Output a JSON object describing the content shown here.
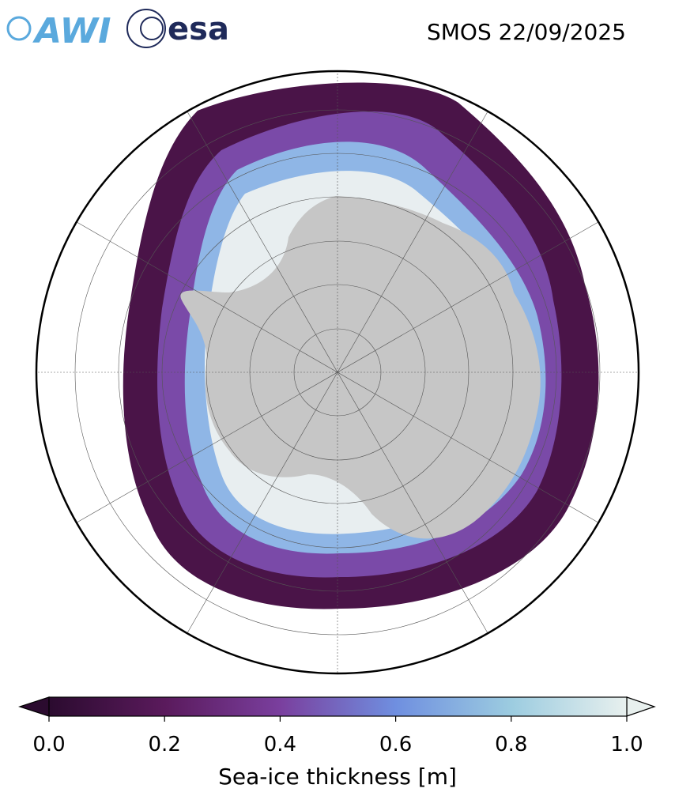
{
  "header": {
    "logos": [
      "AWI",
      "esa"
    ],
    "title": "SMOS 22/09/2025"
  },
  "colorbar": {
    "label": "Sea-ice thickness [m]",
    "lim": [
      0,
      1
    ],
    "ticks": [
      {
        "value": 0,
        "label": "0.0"
      },
      0.2,
      0.4,
      0.6,
      0.8,
      {
        "value": 1,
        "label": "1.0"
      }
    ],
    "colors": [
      "#2b0b2f",
      "#5a1a5c",
      "#7a3f9e",
      "#6f8fe0",
      "#9ccce0",
      "#e8f0ee"
    ]
  }
}
